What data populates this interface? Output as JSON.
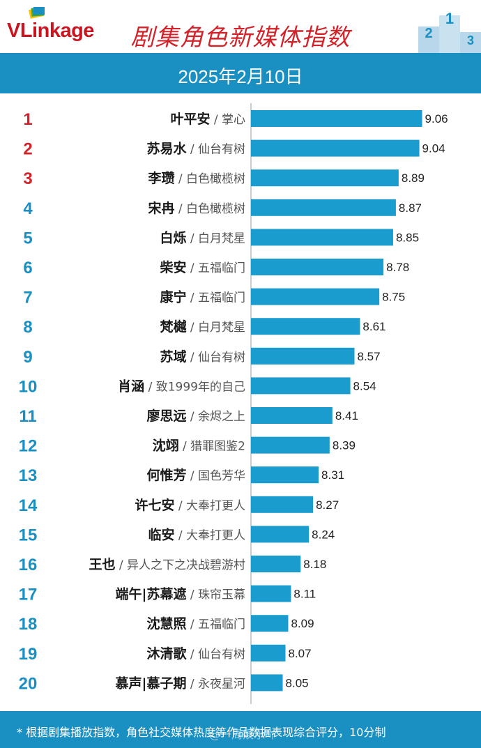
{
  "header": {
    "logo_brand": "VLinkage",
    "title": "剧集角色新媒体指数",
    "date": "2025年2月10日"
  },
  "colors": {
    "accent_blue": "#1a8fc2",
    "bar_blue": "#1a9ccf",
    "top3_rank_red": "#d2232a",
    "rank_blue": "#1a8fc2"
  },
  "chart_data": {
    "type": "bar",
    "orientation": "horizontal",
    "ranks": [
      "1",
      "2",
      "3",
      "4",
      "5",
      "6",
      "7",
      "8",
      "9",
      "10",
      "11",
      "12",
      "13",
      "14",
      "15",
      "16",
      "17",
      "18",
      "19",
      "20"
    ],
    "characters": [
      "叶平安",
      "苏易水",
      "李瓒",
      "宋冉",
      "白烁",
      "柴安",
      "康宁",
      "梵樾",
      "苏域",
      "肖涵",
      "廖思远",
      "沈翊",
      "何惟芳",
      "许七安",
      "临安",
      "王也",
      "端午|苏幕遮",
      "沈慧照",
      "沐清歌",
      "慕声|慕子期"
    ],
    "dramas": [
      "掌心",
      "仙台有树",
      "白色橄榄树",
      "白色橄榄树",
      "白月梵星",
      "五福临门",
      "五福临门",
      "白月梵星",
      "仙台有树",
      "致1999年的自己",
      "余烬之上",
      "猎罪图鉴2",
      "国色芳华",
      "大奉打更人",
      "大奉打更人",
      "异人之下之决战碧游村",
      "珠帘玉幕",
      "五福临门",
      "仙台有树",
      "永夜星河"
    ],
    "values": [
      9.06,
      9.04,
      8.89,
      8.87,
      8.85,
      8.78,
      8.75,
      8.61,
      8.57,
      8.54,
      8.41,
      8.39,
      8.31,
      8.27,
      8.24,
      8.18,
      8.11,
      8.09,
      8.07,
      8.05
    ],
    "value_labels": [
      "9.06",
      "9.04",
      "8.89",
      "8.87",
      "8.85",
      "8.78",
      "8.75",
      "8.61",
      "8.57",
      "8.54",
      "8.41",
      "8.39",
      "8.31",
      "8.27",
      "8.24",
      "8.18",
      "8.11",
      "8.09",
      "8.07",
      "8.05"
    ],
    "axis_min_approx": 7.82,
    "grid": false
  },
  "footer": {
    "note": "* 根据剧集播放指数，角色社交媒体热度等作品数据表现综合评分，10分制",
    "watermark": "@一周娱乐吖"
  }
}
